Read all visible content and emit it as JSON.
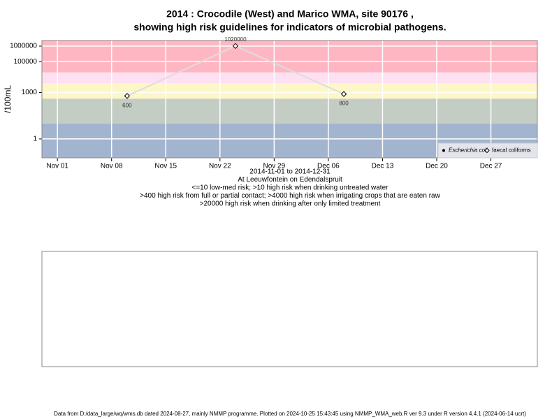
{
  "chart_data": {
    "type": "line",
    "title": "2014 : Crocodile (West) and Marico WMA, site 90176 ,",
    "subtitle": "showing high risk guidelines for indicators of microbial pathogens.",
    "y_label": "/100mL",
    "log_scale_y": true,
    "grid": true,
    "legend_position": "bottom-right",
    "x": [
      "2014-11-10",
      "2014-11-24",
      "2014-12-08"
    ],
    "series": [
      {
        "name": "Escherichia coli",
        "color": "#000000",
        "values": [
          null,
          null,
          null
        ]
      },
      {
        "name": "faecal coliforms",
        "color": "#dddddd",
        "values": [
          600,
          1020000,
          800
        ]
      }
    ],
    "xlim": [
      "2014-10-30",
      "2015-01-02"
    ],
    "xticks": [
      {
        "value": "2014-11-01",
        "label": "Nov 01"
      },
      {
        "value": "2014-11-08",
        "label": "Nov 08"
      },
      {
        "value": "2014-11-15",
        "label": "Nov 15"
      },
      {
        "value": "2014-11-22",
        "label": "Nov 22"
      },
      {
        "value": "2014-11-29",
        "label": "Nov 29"
      },
      {
        "value": "2014-12-06",
        "label": "Dec 06"
      },
      {
        "value": "2014-12-13",
        "label": "Dec 13"
      },
      {
        "value": "2014-12-20",
        "label": "Dec 20"
      },
      {
        "value": "2014-12-27",
        "label": "Dec 27"
      }
    ],
    "ylim": [
      0.06,
      2300000
    ],
    "yticks": [
      1,
      1000,
      100000,
      1000000
    ],
    "risk_bands": {
      "thresholds": [
        10,
        400,
        4000,
        20000
      ],
      "colors": [
        "#a3b4cf",
        "#c3cdc3",
        "#fdf6c6",
        "#fde0f2",
        "#ffb6c3"
      ]
    },
    "notes": [
      "2014-11-01 to 2014-12-31",
      "At Leeuwfontein on Edendalspruit",
      "<=10 low-med risk; >10 high risk when drinking untreated water",
      ">400 high risk from full or partial contact; >4000 high risk when irrigating crops that are eaten raw",
      ">20000 high risk when drinking after only limited treatment"
    ],
    "footer": "Data from D:/data_large/wq/wms.db dated 2024-08-27, mainly NMMP programme. Plotted on 2024-10-25 15:43:45 using NMMP_WMA_web.R ver 9.3 under R version 4.4.1 (2024-06-14 ucrt)"
  }
}
